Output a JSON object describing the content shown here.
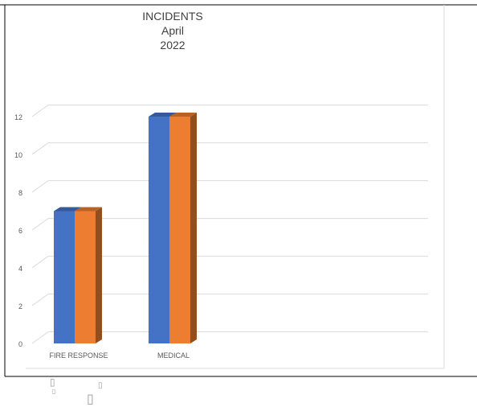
{
  "chart_data": {
    "type": "bar",
    "title_lines": [
      "INCIDENTS",
      "April",
      "2022"
    ],
    "categories": [
      "FIRE RESPONSE",
      "MEDICAL"
    ],
    "series": [
      {
        "values": [
          7,
          12
        ],
        "color": "#4472c4"
      },
      {
        "values": [
          7,
          12
        ],
        "color": "#ed7d31"
      }
    ],
    "y_ticks": [
      "0",
      "2",
      "4",
      "6",
      "8",
      "10",
      "12"
    ],
    "ylim": [
      0,
      12
    ],
    "grid": true,
    "style": "3d-clustered-column"
  },
  "colors": {
    "gridline": "#d9d9d9",
    "axis_text": "#595959",
    "frame": "#000000",
    "plot_border": "#d9d9d9"
  },
  "footer_glyphs": [
    "▯",
    "▯",
    "▯",
    "▯"
  ]
}
